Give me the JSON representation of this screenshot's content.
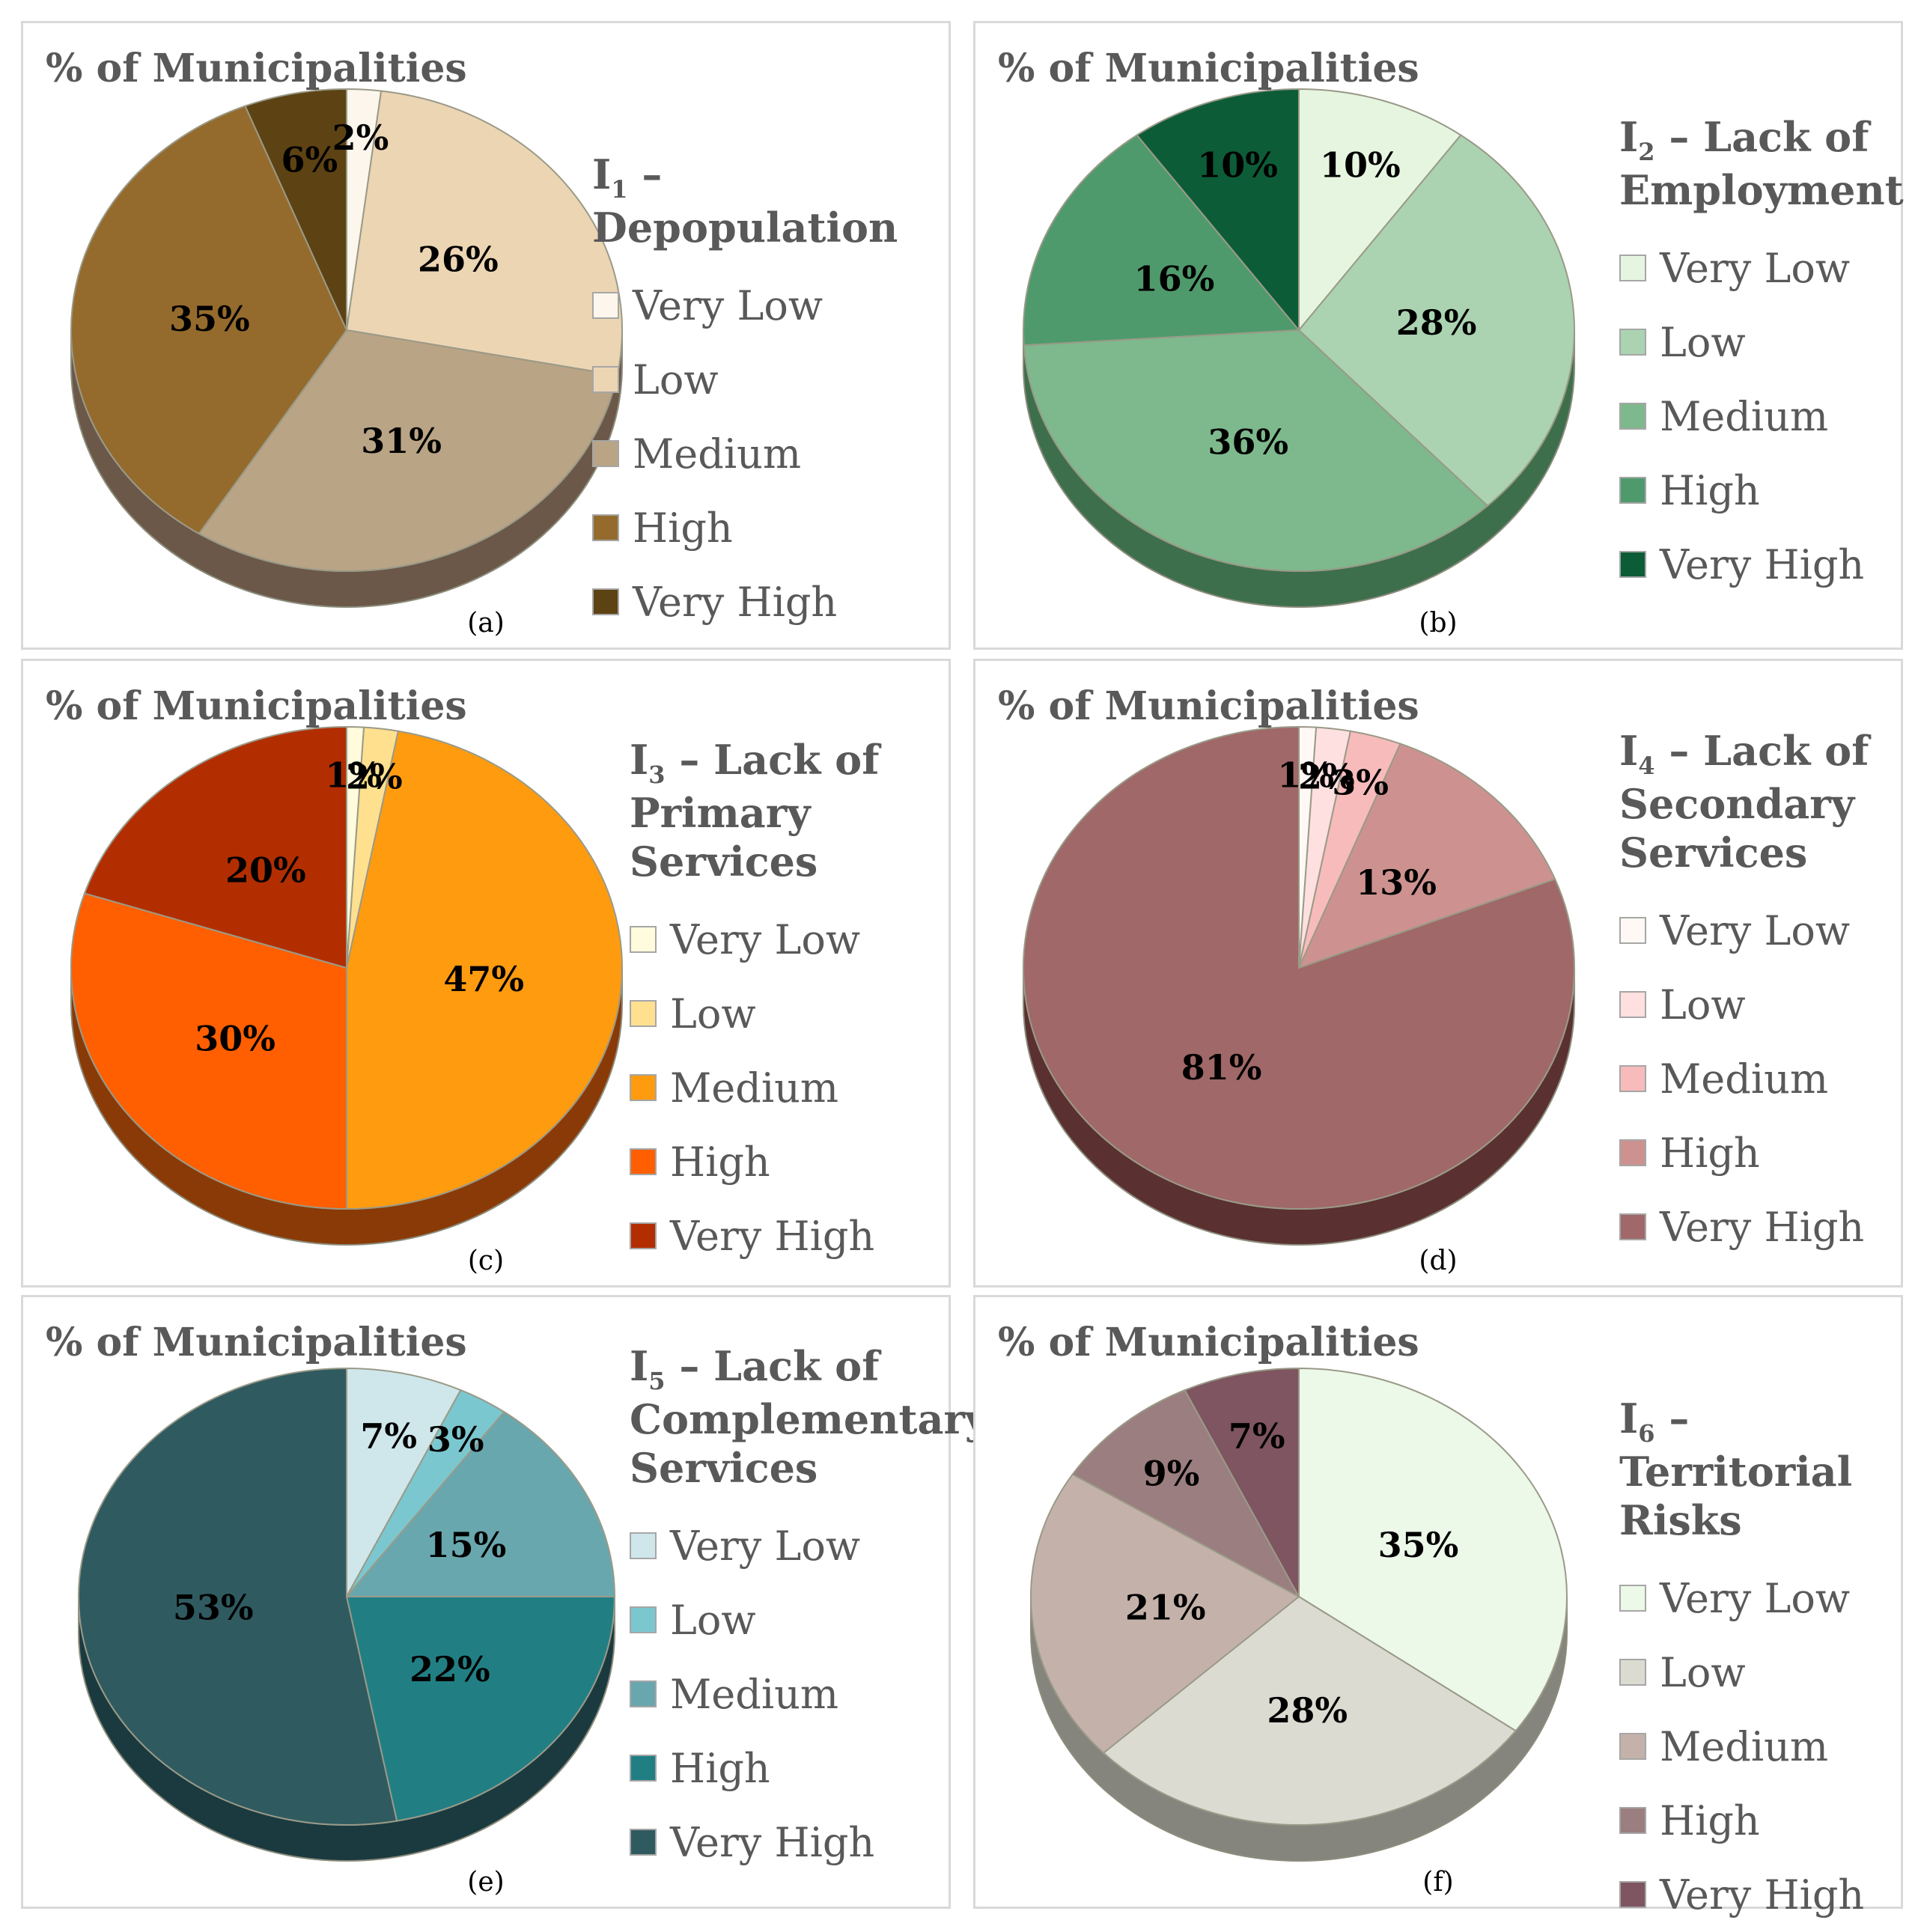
{
  "chart_data": [
    {
      "type": "pie",
      "title": "% of Municipalities",
      "indicator": "I",
      "indicator_sub": "1",
      "indicator_lines": [
        " – Depopulation"
      ],
      "caption": "(a)",
      "categories": [
        "Very Low",
        "Low",
        "Medium",
        "High",
        "Very High"
      ],
      "values": [
        2,
        26,
        31,
        35,
        6
      ],
      "labels": [
        "2%",
        "26%",
        "31%",
        "35%",
        "6%"
      ],
      "colors": [
        "#fdf6ec",
        "#ecd5b3",
        "#b9a485",
        "#956b2d",
        "#5d4213"
      ],
      "side_color": "#6b5848"
    },
    {
      "type": "pie",
      "title": "% of Municipalities",
      "indicator": "I",
      "indicator_sub": "2",
      "indicator_lines": [
        " – Lack of",
        "Employment"
      ],
      "caption": "(b)",
      "categories": [
        "Very Low",
        "Low",
        "Medium",
        "High",
        "Very High"
      ],
      "values": [
        10,
        28,
        36,
        16,
        10
      ],
      "labels": [
        "10%",
        "28%",
        "36%",
        "16%",
        "10%"
      ],
      "colors": [
        "#e6f5e0",
        "#abd3b1",
        "#7db98c",
        "#4f9a6c",
        "#0d5c38"
      ],
      "side_color": "#3e6f4d"
    },
    {
      "type": "pie",
      "title": "% of Municipalities",
      "indicator": "I",
      "indicator_sub": "3",
      "indicator_lines": [
        " – Lack of",
        "Primary Services"
      ],
      "caption": "(c)",
      "categories": [
        "Very Low",
        "Low",
        "Medium",
        "High",
        "Very High"
      ],
      "values": [
        1,
        2,
        47,
        30,
        20
      ],
      "labels": [
        "1%",
        "2%",
        "47%",
        "30%",
        "20%"
      ],
      "colors": [
        "#fffbdc",
        "#ffe08f",
        "#ff9b0f",
        "#ff5f00",
        "#b22e00"
      ],
      "side_color": "#8a3a06"
    },
    {
      "type": "pie",
      "title": "% of Municipalities",
      "indicator": "I",
      "indicator_sub": "4",
      "indicator_lines": [
        " – Lack of",
        "Secondary",
        "Services"
      ],
      "caption": "(d)",
      "categories": [
        "Very Low",
        "Low",
        "Medium",
        "High",
        "Very High"
      ],
      "values": [
        1,
        2,
        3,
        13,
        81
      ],
      "labels": [
        "1%",
        "2%",
        "3%",
        "13%",
        "81%"
      ],
      "colors": [
        "#fff8f4",
        "#fde0df",
        "#f8bbbb",
        "#cd9290",
        "#a06868"
      ],
      "side_color": "#5a3030"
    },
    {
      "type": "pie",
      "title": "% of Municipalities",
      "indicator": "I",
      "indicator_sub": "5",
      "indicator_lines": [
        " – Lack of",
        "Complementary",
        "Services"
      ],
      "caption": "(e)",
      "categories": [
        "Very Low",
        "Low",
        "Medium",
        "High",
        "Very High"
      ],
      "values": [
        7,
        3,
        15,
        22,
        53
      ],
      "labels": [
        "7%",
        "3%",
        "15%",
        "22%",
        "53%"
      ],
      "colors": [
        "#cfe7eb",
        "#7bc7d0",
        "#69a7ae",
        "#217f84",
        "#2f5a60"
      ],
      "side_color": "#1a3a3f"
    },
    {
      "type": "pie",
      "title": "% of Municipalities",
      "indicator": "I",
      "indicator_sub": "6",
      "indicator_lines": [
        " – Territorial",
        "Risks"
      ],
      "caption": "(f)",
      "categories": [
        "Very Low",
        "Low",
        "Medium",
        "High",
        "Very High"
      ],
      "values": [
        35,
        28,
        21,
        9,
        7
      ],
      "labels": [
        "35%",
        "28%",
        "21%",
        "9%",
        "7%"
      ],
      "colors": [
        "#ecf8e8",
        "#dcdbd2",
        "#c4b2aa",
        "#9b7e7f",
        "#7e5560"
      ],
      "side_color": "#85857e"
    }
  ]
}
